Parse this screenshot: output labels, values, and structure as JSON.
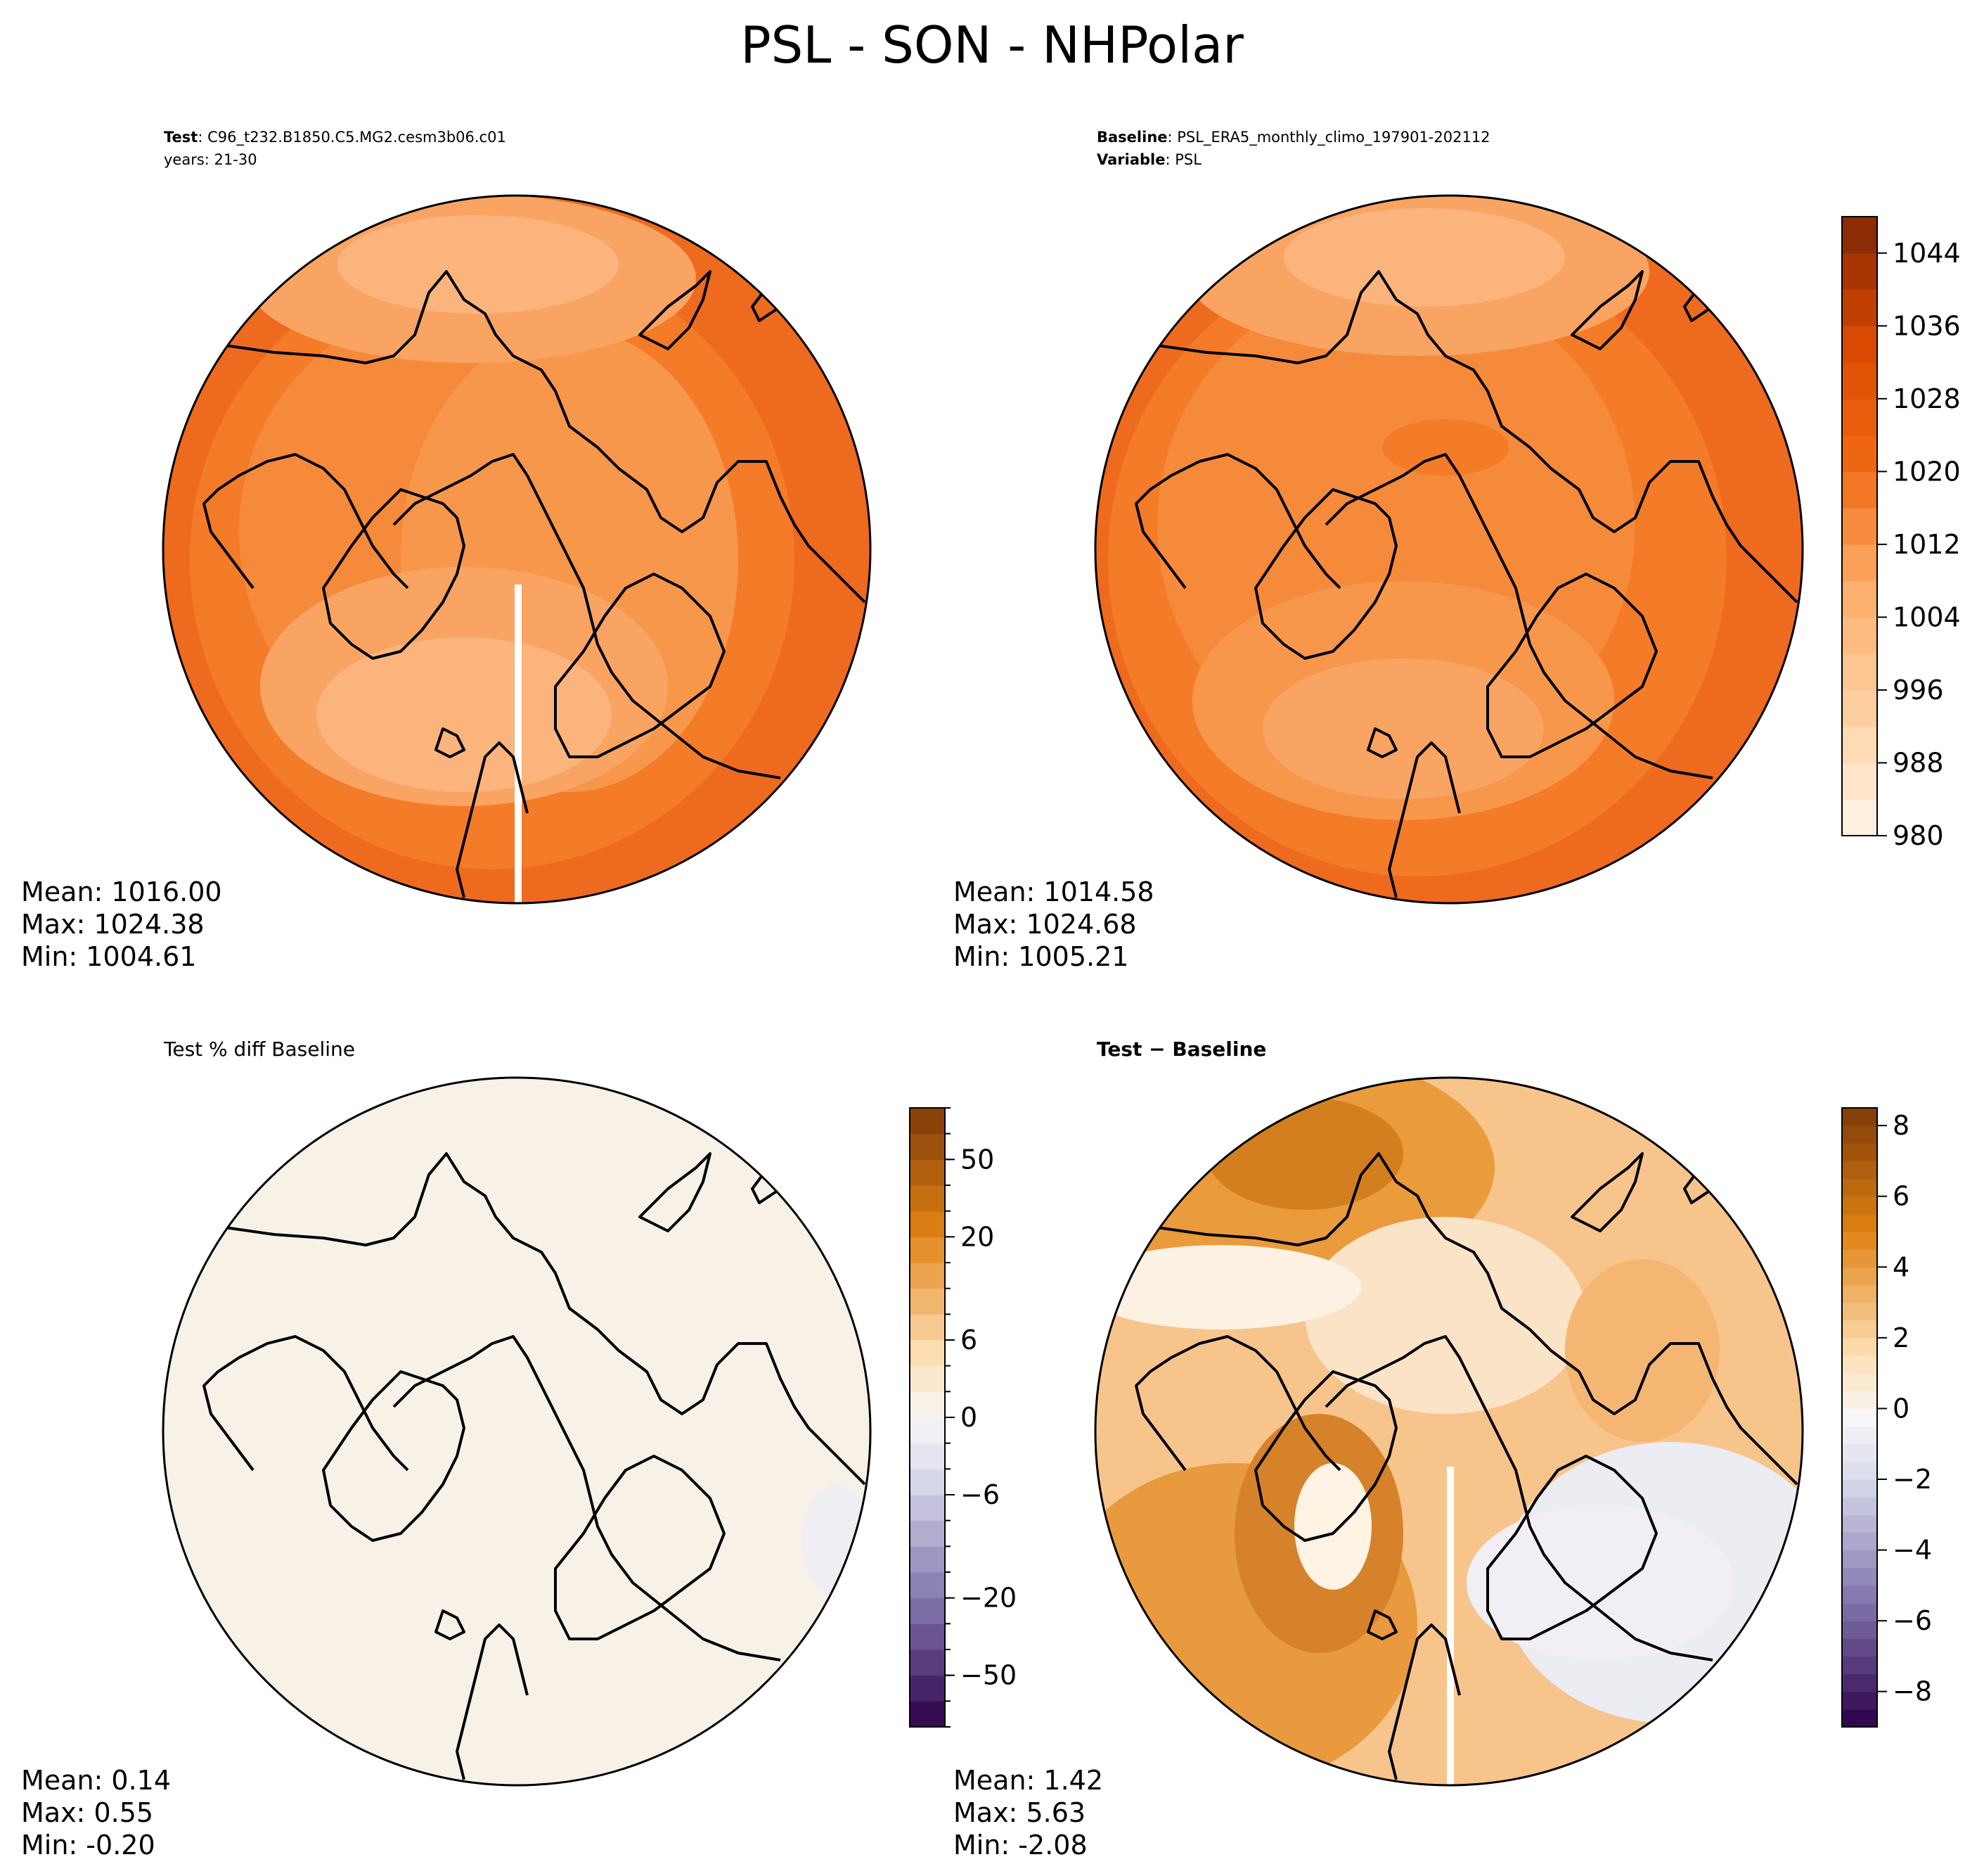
{
  "figure": {
    "title": "PSL - SON - NHPolar"
  },
  "panels": {
    "test": {
      "header_bold": "Test",
      "header_text": ": C96_t232.B1850.C5.MG2.cesm3b06.c01",
      "header_line2": "years: 21-30",
      "stats": [
        "Mean: 1016.00",
        "Max: 1024.38",
        "Min: 1004.61"
      ]
    },
    "baseline": {
      "header_bold": "Baseline",
      "header_text": ": PSL_ERA5_monthly_climo_197901-202112",
      "header2_bold": "Variable",
      "header2_text": ": PSL",
      "stats": [
        "Mean: 1014.58",
        "Max: 1024.68",
        "Min: 1005.21"
      ]
    },
    "pctdiff": {
      "title": "Test % diff Baseline",
      "stats": [
        "Mean:  0.14",
        "Max:  0.55",
        "Min: -0.20"
      ]
    },
    "diff": {
      "title": "Test − Baseline",
      "stats": [
        "Mean:  1.42",
        "Max:  5.63",
        "Min: -2.08"
      ]
    }
  },
  "chart_data": [
    {
      "type": "heatmap",
      "title": "Test: C96_t232.B1850.C5.MG2.cesm3b06.c01 years: 21-30",
      "projection": "north-polar-stereographic",
      "colormap": "Oranges",
      "colorbar_ticks": [
        980,
        988,
        996,
        1004,
        1012,
        1020,
        1028,
        1036,
        1044
      ],
      "value_range": [
        980,
        1048
      ],
      "mean": 1016.0,
      "max": 1024.38,
      "min": 1004.61
    },
    {
      "type": "heatmap",
      "title": "Baseline: PSL_ERA5_monthly_climo_197901-202112 Variable: PSL",
      "projection": "north-polar-stereographic",
      "colormap": "Oranges",
      "colorbar_ticks": [
        980,
        988,
        996,
        1004,
        1012,
        1020,
        1028,
        1036,
        1044
      ],
      "value_range": [
        980,
        1048
      ],
      "mean": 1014.58,
      "max": 1024.68,
      "min": 1005.21
    },
    {
      "type": "heatmap",
      "title": "Test % diff Baseline",
      "projection": "north-polar-stereographic",
      "colormap": "PuOr_r",
      "colorbar_ticks": [
        -50,
        -20,
        -6,
        0,
        6,
        20,
        50
      ],
      "colorbar_tick_labels": [
        "−50",
        "−20",
        "−6",
        "0",
        "6",
        "20",
        "50"
      ],
      "mean": 0.14,
      "max": 0.55,
      "min": -0.2
    },
    {
      "type": "heatmap",
      "title": "Test − Baseline",
      "projection": "north-polar-stereographic",
      "colormap": "PuOr_r",
      "colorbar_ticks": [
        -8,
        -6,
        -4,
        -2,
        0,
        2,
        4,
        6,
        8
      ],
      "colorbar_tick_labels": [
        "−8",
        "−6",
        "−4",
        "−2",
        "0",
        "2",
        "4",
        "6",
        "8"
      ],
      "value_range": [
        -9,
        8.5
      ],
      "mean": 1.42,
      "max": 5.63,
      "min": -2.08
    }
  ]
}
